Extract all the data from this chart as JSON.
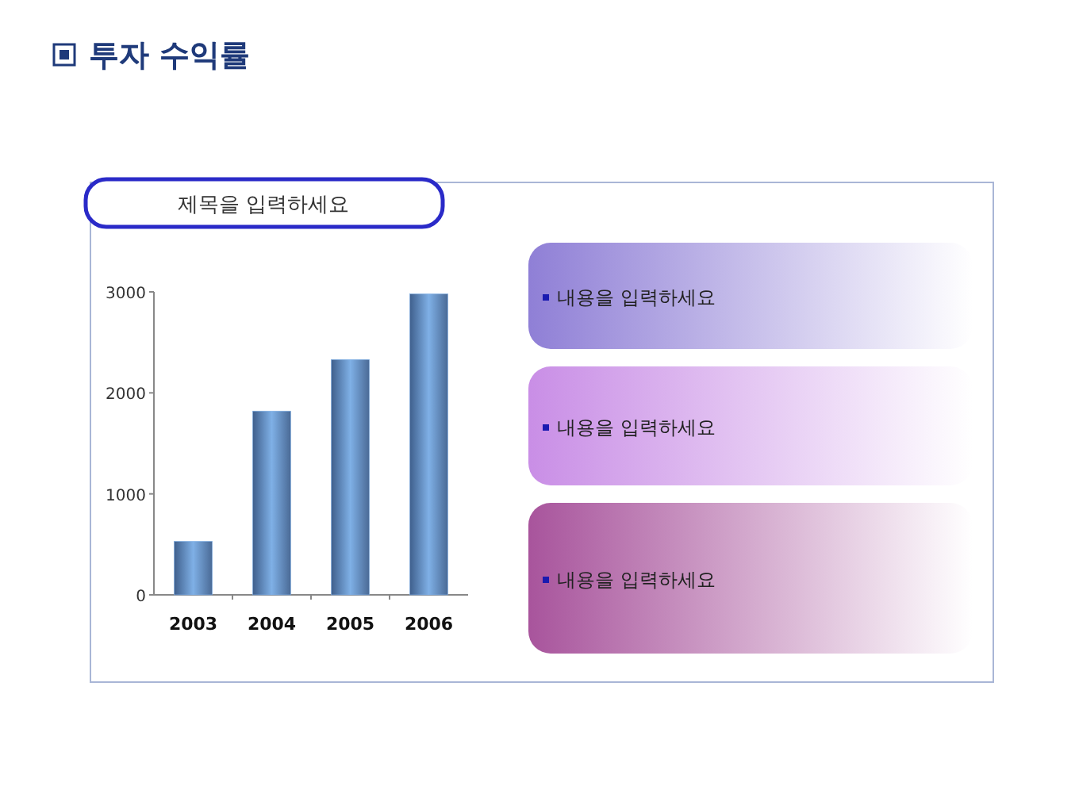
{
  "chart_data": {
    "type": "bar",
    "title": "투자 수익률",
    "subtitle": "제목을 입력하세요",
    "categories": [
      "2003",
      "2004",
      "2005",
      "2006"
    ],
    "values": [
      530,
      1820,
      2330,
      2980
    ],
    "color": "#7fb0e6",
    "ylim": [
      0,
      3000
    ],
    "yticks": [
      0,
      1000,
      2000,
      3000
    ],
    "annotations": [
      "내용을 입력하세요",
      "내용을 입력하세요",
      "내용을 입력하세요"
    ]
  }
}
